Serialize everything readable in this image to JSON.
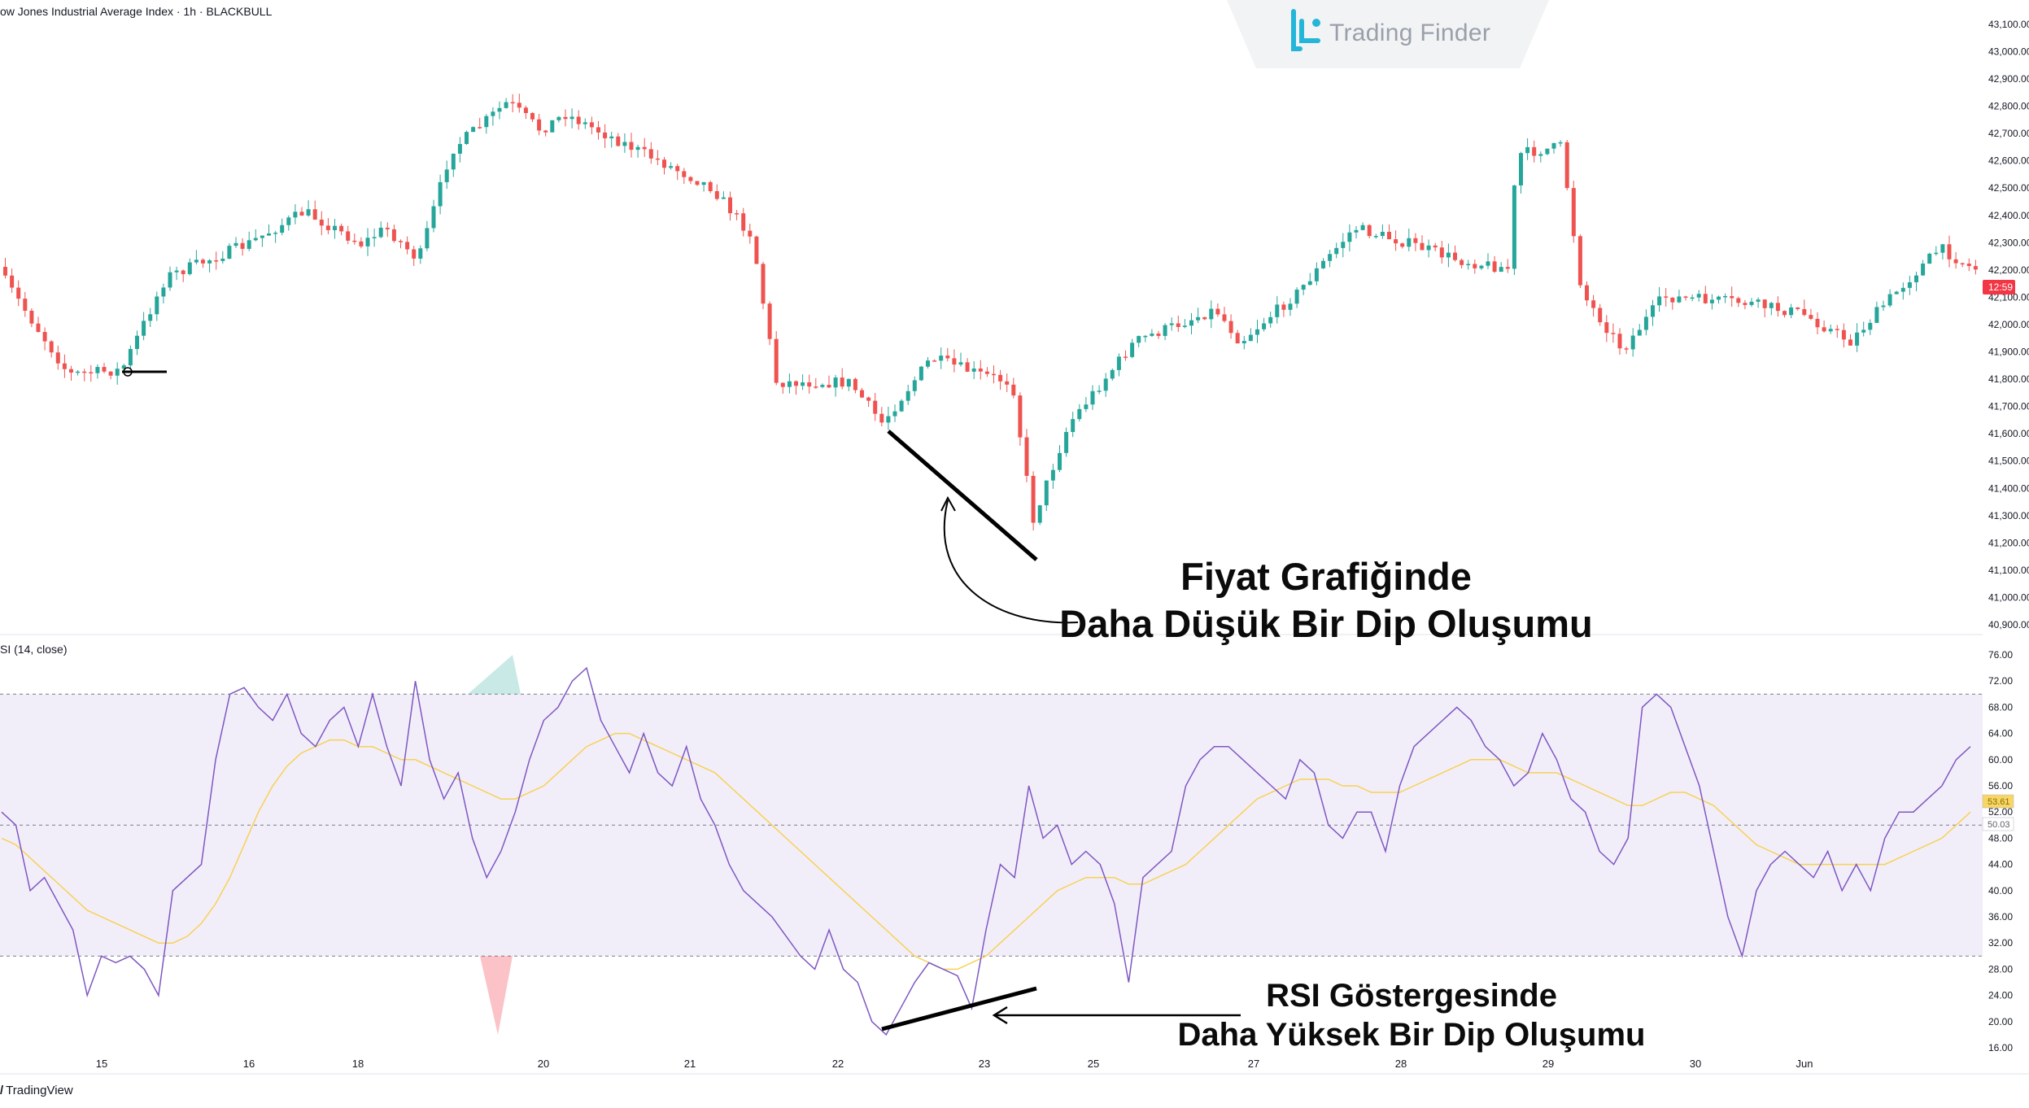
{
  "header": {
    "symbol_title": "ow Jones Industrial Average Index · 1h · BLACKBULL",
    "watermark_brand": "Trading Finder"
  },
  "rsi_panel": {
    "title": "SI (14, close)"
  },
  "annotations": {
    "price_line1": "Fiyat Grafiğinde",
    "price_line2": "Daha Düşük Bir Dip Oluşumu",
    "rsi_line1": "RSI Göstergesinde",
    "rsi_line2": "Daha Yüksek Bir Dip Oluşumu"
  },
  "footer": {
    "brand": "TradingView"
  },
  "colors": {
    "up": "#26a69a",
    "down": "#ef5350",
    "rsi_line": "#7e57c2",
    "rsi_ma": "#f7d154",
    "rsi_band": "#7e57c2",
    "price_tag": "#f23645",
    "axis_text": "#131722"
  },
  "chart_data": [
    {
      "type": "candlestick",
      "title": "ow Jones Industrial Average Index · 1h · BLACKBULL",
      "x_tick_labels": [
        "15",
        "16",
        "18",
        "20",
        "21",
        "22",
        "23",
        "25",
        "27",
        "28",
        "29",
        "30",
        "Jun"
      ],
      "y_tick_labels": [
        "40,900.00",
        "41,000.00",
        "41,100.00",
        "41,200.00",
        "41,300.00",
        "41,400.00",
        "41,500.00",
        "41,600.00",
        "41,700.00",
        "41,800.00",
        "41,900.00",
        "42,000.00",
        "42,100.00",
        "42,200.00",
        "42,300.00",
        "42,400.00",
        "42,500.00",
        "42,600.00",
        "42,700.00",
        "42,800.00",
        "42,900.00",
        "43,000.00",
        "43,100.00"
      ],
      "ylim": [
        40870,
        43130
      ],
      "last_price_tag": "12:59",
      "close_path": [
        {
          "x": "14",
          "close": 42180
        },
        {
          "x": "14.6",
          "close": 41840
        },
        {
          "x": "15",
          "close": 41820
        },
        {
          "x": "15.5",
          "close": 42250
        },
        {
          "x": "16",
          "close": 42300
        },
        {
          "x": "16.5",
          "close": 42450
        },
        {
          "x": "17",
          "close": 42300
        },
        {
          "x": "18",
          "close": 42380
        },
        {
          "x": "18.3",
          "close": 42260
        },
        {
          "x": "18.8",
          "close": 42700
        },
        {
          "x": "19.4",
          "close": 42860
        },
        {
          "x": "19.9",
          "close": 42720
        },
        {
          "x": "20",
          "close": 42790
        },
        {
          "x": "20.5",
          "close": 42620
        },
        {
          "x": "21",
          "close": 42500
        },
        {
          "x": "21.4",
          "close": 42250
        },
        {
          "x": "21.6",
          "close": 41850
        },
        {
          "x": "22.1",
          "close": 41850
        },
        {
          "x": "22.3",
          "close": 41640
        },
        {
          "x": "22.7",
          "close": 41960
        },
        {
          "x": "23.1",
          "close": 41900
        },
        {
          "x": "23.4",
          "close": 41870
        },
        {
          "x": "23.6",
          "close": 41250
        },
        {
          "x": "24",
          "close": 41600
        },
        {
          "x": "25",
          "close": 41950
        },
        {
          "x": "26",
          "close": 42060
        },
        {
          "x": "26.5",
          "close": 41950
        },
        {
          "x": "27",
          "close": 42100
        },
        {
          "x": "27.6",
          "close": 42380
        },
        {
          "x": "28",
          "close": 42300
        },
        {
          "x": "28.5",
          "close": 42250
        },
        {
          "x": "29",
          "close": 42200
        },
        {
          "x": "29.2",
          "close": 42620
        },
        {
          "x": "29.6",
          "close": 42660
        },
        {
          "x": "30",
          "close": 42150
        },
        {
          "x": "30.3",
          "close": 41900
        },
        {
          "x": "30.6",
          "close": 42120
        },
        {
          "x": "31",
          "close": 42110
        },
        {
          "x": "31.5",
          "close": 42060
        },
        {
          "x": "Jun",
          "close": 41960
        },
        {
          "x": "Jun.3",
          "close": 42120
        },
        {
          "x": "Jun.6",
          "close": 42300
        },
        {
          "x": "Jun.9",
          "close": 42180
        }
      ]
    },
    {
      "type": "line",
      "title": "SI (14, close)",
      "x_tick_labels": [
        "15",
        "16",
        "18",
        "20",
        "21",
        "22",
        "23",
        "25",
        "27",
        "28",
        "29",
        "30",
        "Jun"
      ],
      "y_tick_labels": [
        "16.00",
        "20.00",
        "24.00",
        "28.00",
        "32.00",
        "36.00",
        "40.00",
        "44.00",
        "48.00",
        "52.00",
        "56.00",
        "60.00",
        "64.00",
        "68.00",
        "72.00",
        "76.00"
      ],
      "ylim": [
        14,
        78
      ],
      "bands": [
        30,
        50,
        70
      ],
      "value_tags": [
        "53.61",
        "50.03"
      ],
      "series": [
        {
          "values": [
            52,
            50,
            40,
            42,
            38,
            34,
            24,
            30,
            29,
            30,
            28,
            24,
            40,
            42,
            44,
            60,
            70,
            71,
            68,
            66,
            70,
            64,
            62,
            66,
            68,
            62,
            70,
            62,
            56,
            72,
            60,
            54,
            58,
            48,
            42,
            46,
            52,
            60,
            66,
            68,
            72,
            74,
            66,
            62,
            58,
            64,
            58,
            56,
            62,
            54,
            50,
            44,
            40,
            38,
            36,
            33,
            30,
            28,
            34,
            28,
            26,
            20,
            18,
            22,
            26,
            29,
            28,
            27,
            22,
            34,
            44,
            42,
            56,
            48,
            50,
            44,
            46,
            44,
            38,
            26,
            42,
            44,
            46,
            56,
            60,
            62,
            62,
            60,
            58,
            56,
            54,
            60,
            58,
            50,
            48,
            52,
            52,
            46,
            56,
            62,
            64,
            66,
            68,
            66,
            62,
            60,
            56,
            58,
            64,
            60,
            54,
            52,
            46,
            44,
            48,
            68,
            70,
            68,
            62,
            56,
            46,
            36,
            30,
            40,
            44,
            46,
            44,
            42,
            46,
            40,
            44,
            40,
            48,
            52,
            52,
            54,
            56,
            60,
            62
          ]
        },
        {
          "values": [
            48,
            47,
            45,
            43,
            41,
            39,
            37,
            36,
            35,
            34,
            33,
            32,
            32,
            33,
            35,
            38,
            42,
            47,
            52,
            56,
            59,
            61,
            62,
            63,
            63,
            62,
            62,
            61,
            60,
            60,
            59,
            58,
            57,
            56,
            55,
            54,
            54,
            55,
            56,
            58,
            60,
            62,
            63,
            64,
            64,
            63,
            62,
            61,
            60,
            59,
            58,
            56,
            54,
            52,
            50,
            48,
            46,
            44,
            42,
            40,
            38,
            36,
            34,
            32,
            30,
            29,
            28,
            28,
            29,
            30,
            32,
            34,
            36,
            38,
            40,
            41,
            42,
            42,
            42,
            41,
            41,
            42,
            43,
            44,
            46,
            48,
            50,
            52,
            54,
            55,
            56,
            57,
            57,
            57,
            56,
            56,
            55,
            55,
            55,
            56,
            57,
            58,
            59,
            60,
            60,
            60,
            59,
            58,
            58,
            58,
            57,
            56,
            55,
            54,
            53,
            53,
            54,
            55,
            55,
            54,
            53,
            51,
            49,
            47,
            46,
            45,
            44,
            44,
            44,
            44,
            44,
            44,
            44,
            45,
            46,
            47,
            48,
            50,
            52
          ]
        }
      ]
    }
  ]
}
